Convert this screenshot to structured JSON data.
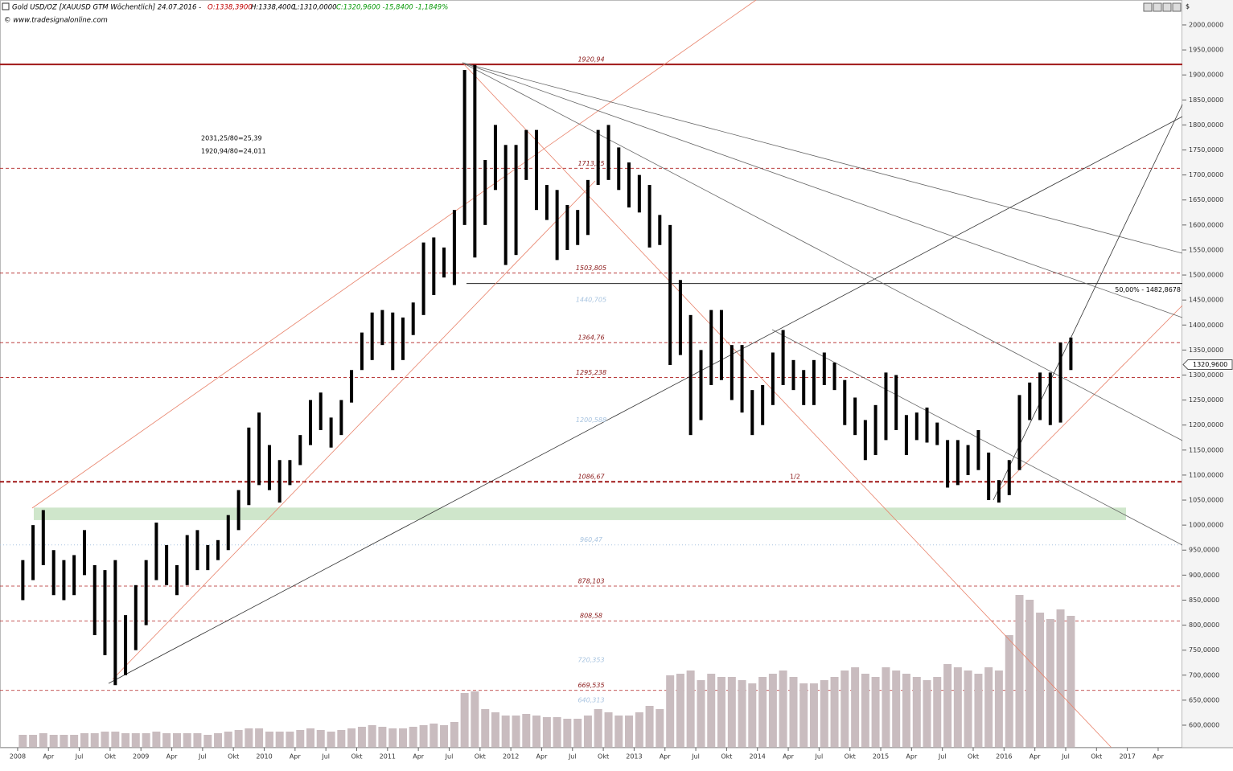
{
  "header": {
    "symbol": "Gold USD/OZ [XAUUSD GTM  Wöchentlich] 24.07.2016 -",
    "open": "O:1338,3900",
    "high": "H:1338,4000",
    "low": "L:1310,0000",
    "close": "C:1320,9600 -15,8400 -1,1849%",
    "source": "© www.tradesignalonline.com"
  },
  "chart_data": {
    "type": "range-bar",
    "x": [
      2008.042,
      2008.125,
      2008.208,
      2008.292,
      2008.375,
      2008.458,
      2008.542,
      2008.625,
      2008.708,
      2008.792,
      2008.875,
      2008.958,
      2009.042,
      2009.125,
      2009.208,
      2009.292,
      2009.375,
      2009.458,
      2009.542,
      2009.625,
      2009.708,
      2009.792,
      2009.875,
      2009.958,
      2010.042,
      2010.125,
      2010.208,
      2010.292,
      2010.375,
      2010.458,
      2010.542,
      2010.625,
      2010.708,
      2010.792,
      2010.875,
      2010.958,
      2011.042,
      2011.125,
      2011.208,
      2011.292,
      2011.375,
      2011.458,
      2011.542,
      2011.625,
      2011.708,
      2011.792,
      2011.875,
      2011.958,
      2012.042,
      2012.125,
      2012.208,
      2012.292,
      2012.375,
      2012.458,
      2012.542,
      2012.625,
      2012.708,
      2012.792,
      2012.875,
      2012.958,
      2013.042,
      2013.125,
      2013.208,
      2013.292,
      2013.375,
      2013.458,
      2013.542,
      2013.625,
      2013.708,
      2013.792,
      2013.875,
      2013.958,
      2014.042,
      2014.125,
      2014.208,
      2014.292,
      2014.375,
      2014.458,
      2014.542,
      2014.625,
      2014.708,
      2014.792,
      2014.875,
      2014.958,
      2015.042,
      2015.125,
      2015.208,
      2015.292,
      2015.375,
      2015.458,
      2015.542,
      2015.625,
      2015.708,
      2015.792,
      2015.875,
      2015.958,
      2016.042,
      2016.125,
      2016.208,
      2016.292,
      2016.375,
      2016.458,
      2016.542
    ],
    "high": [
      930,
      1000,
      1030,
      950,
      930,
      940,
      990,
      920,
      910,
      930,
      820,
      880,
      930,
      1005,
      960,
      920,
      980,
      990,
      960,
      970,
      1020,
      1070,
      1195,
      1225,
      1160,
      1130,
      1130,
      1180,
      1250,
      1265,
      1215,
      1250,
      1310,
      1385,
      1425,
      1430,
      1425,
      1415,
      1445,
      1565,
      1575,
      1555,
      1630,
      1910,
      1920,
      1730,
      1800,
      1760,
      1760,
      1790,
      1790,
      1680,
      1670,
      1640,
      1630,
      1690,
      1790,
      1800,
      1755,
      1725,
      1700,
      1680,
      1620,
      1600,
      1490,
      1420,
      1350,
      1430,
      1430,
      1360,
      1360,
      1270,
      1280,
      1345,
      1390,
      1330,
      1310,
      1330,
      1345,
      1325,
      1290,
      1255,
      1210,
      1240,
      1305,
      1300,
      1220,
      1225,
      1235,
      1205,
      1170,
      1170,
      1160,
      1190,
      1145,
      1090,
      1130,
      1260,
      1285,
      1305,
      1305,
      1365,
      1375
    ],
    "low": [
      850,
      890,
      920,
      860,
      850,
      860,
      900,
      780,
      740,
      680,
      700,
      750,
      800,
      890,
      880,
      860,
      880,
      910,
      910,
      930,
      950,
      990,
      1040,
      1080,
      1070,
      1045,
      1080,
      1120,
      1160,
      1190,
      1155,
      1180,
      1245,
      1310,
      1330,
      1360,
      1310,
      1330,
      1380,
      1420,
      1460,
      1495,
      1480,
      1600,
      1535,
      1600,
      1670,
      1520,
      1540,
      1690,
      1630,
      1610,
      1530,
      1550,
      1560,
      1580,
      1680,
      1690,
      1670,
      1635,
      1625,
      1555,
      1560,
      1320,
      1340,
      1180,
      1210,
      1280,
      1290,
      1250,
      1225,
      1180,
      1200,
      1240,
      1280,
      1270,
      1240,
      1240,
      1280,
      1270,
      1200,
      1180,
      1130,
      1140,
      1170,
      1190,
      1140,
      1170,
      1165,
      1160,
      1075,
      1080,
      1100,
      1110,
      1050,
      1045,
      1060,
      1110,
      1210,
      1210,
      1200,
      1205,
      1310
    ],
    "volume": [
      8,
      8,
      9,
      8,
      8,
      8,
      9,
      9,
      10,
      10,
      9,
      9,
      9,
      10,
      9,
      9,
      9,
      9,
      8,
      9,
      10,
      11,
      12,
      12,
      10,
      10,
      10,
      11,
      12,
      11,
      10,
      11,
      12,
      13,
      14,
      13,
      12,
      12,
      13,
      14,
      15,
      14,
      16,
      34,
      35,
      24,
      22,
      20,
      20,
      21,
      20,
      19,
      19,
      18,
      18,
      20,
      24,
      22,
      20,
      20,
      22,
      26,
      24,
      45,
      46,
      48,
      42,
      46,
      44,
      44,
      42,
      40,
      44,
      46,
      48,
      44,
      40,
      40,
      42,
      44,
      48,
      50,
      46,
      44,
      50,
      48,
      46,
      44,
      42,
      44,
      52,
      50,
      48,
      46,
      50,
      48,
      70,
      95,
      92,
      84,
      80,
      86,
      82
    ],
    "color": "#000000",
    "volume_color": "#c9bcbf",
    "xlim": [
      2007.857,
      2017.446
    ],
    "xticks": [
      {
        "value": 2008,
        "label": "2008"
      },
      {
        "value": 2008.25,
        "label": "Apr"
      },
      {
        "value": 2008.5,
        "label": "Jul"
      },
      {
        "value": 2008.75,
        "label": "Okt"
      },
      {
        "value": 2009,
        "label": "2009"
      },
      {
        "value": 2009.25,
        "label": "Apr"
      },
      {
        "value": 2009.5,
        "label": "Jul"
      },
      {
        "value": 2009.75,
        "label": "Okt"
      },
      {
        "value": 2010,
        "label": "2010"
      },
      {
        "value": 2010.25,
        "label": "Apr"
      },
      {
        "value": 2010.5,
        "label": "Jul"
      },
      {
        "value": 2010.75,
        "label": "Okt"
      },
      {
        "value": 2011,
        "label": "2011"
      },
      {
        "value": 2011.25,
        "label": "Apr"
      },
      {
        "value": 2011.5,
        "label": "Jul"
      },
      {
        "value": 2011.75,
        "label": "Okt"
      },
      {
        "value": 2012,
        "label": "2012"
      },
      {
        "value": 2012.25,
        "label": "Apr"
      },
      {
        "value": 2012.5,
        "label": "Jul"
      },
      {
        "value": 2012.75,
        "label": "Okt"
      },
      {
        "value": 2013,
        "label": "2013"
      },
      {
        "value": 2013.25,
        "label": "Apr"
      },
      {
        "value": 2013.5,
        "label": "Jul"
      },
      {
        "value": 2013.75,
        "label": "Okt"
      },
      {
        "value": 2014,
        "label": "2014"
      },
      {
        "value": 2014.25,
        "label": "Apr"
      },
      {
        "value": 2014.5,
        "label": "Jul"
      },
      {
        "value": 2014.75,
        "label": "Okt"
      },
      {
        "value": 2015,
        "label": "2015"
      },
      {
        "value": 2015.25,
        "label": "Apr"
      },
      {
        "value": 2015.5,
        "label": "Jul"
      },
      {
        "value": 2015.75,
        "label": "Okt"
      },
      {
        "value": 2016,
        "label": "2016"
      },
      {
        "value": 2016.25,
        "label": "Apr"
      },
      {
        "value": 2016.5,
        "label": "Jul"
      },
      {
        "value": 2016.75,
        "label": "Okt"
      },
      {
        "value": 2017,
        "label": "2017"
      },
      {
        "value": 2017.25,
        "label": "Apr"
      }
    ],
    "ylim": [
      555.0,
      2049.8
    ],
    "yticks": [
      {
        "value": 600,
        "label": "600,0000"
      },
      {
        "value": 650,
        "label": "650,0000"
      },
      {
        "value": 700,
        "label": "700,0000"
      },
      {
        "value": 750,
        "label": "750,0000"
      },
      {
        "value": 800,
        "label": "800,0000"
      },
      {
        "value": 850,
        "label": "850,0000"
      },
      {
        "value": 900,
        "label": "900,0000"
      },
      {
        "value": 950,
        "label": "950,0000"
      },
      {
        "value": 1000,
        "label": "1000,0000"
      },
      {
        "value": 1050,
        "label": "1050,0000"
      },
      {
        "value": 1100,
        "label": "1100,0000"
      },
      {
        "value": 1150,
        "label": "1150,0000"
      },
      {
        "value": 1200,
        "label": "1200,0000"
      },
      {
        "value": 1250,
        "label": "1250,0000"
      },
      {
        "value": 1300,
        "label": "1300,0000"
      },
      {
        "value": 1350,
        "label": "1350,0000"
      },
      {
        "value": 1400,
        "label": "1400,0000"
      },
      {
        "value": 1450,
        "label": "1450,0000"
      },
      {
        "value": 1500,
        "label": "1500,0000"
      },
      {
        "value": 1550,
        "label": "1550,0000"
      },
      {
        "value": 1600,
        "label": "1600,0000"
      },
      {
        "value": 1650,
        "label": "1650,0000"
      },
      {
        "value": 1700,
        "label": "1700,0000"
      },
      {
        "value": 1750,
        "label": "1750,0000"
      },
      {
        "value": 1800,
        "label": "1800,0000"
      },
      {
        "value": 1850,
        "label": "1850,0000"
      },
      {
        "value": 1900,
        "label": "1900,0000"
      },
      {
        "value": 1950,
        "label": "1950,0000"
      },
      {
        "value": 2000,
        "label": "2000,0000"
      }
    ],
    "y_unit": "$",
    "levels": [
      {
        "value": 1920.94,
        "label": "1920,94",
        "style": "solid"
      },
      {
        "value": 1713.35,
        "label": "1713,35",
        "style": "dashed"
      },
      {
        "value": 1503.805,
        "label": "1503,805",
        "style": "dashed"
      },
      {
        "value": 1440.705,
        "label": "1440,705",
        "style": "label"
      },
      {
        "value": 1364.76,
        "label": "1364,76",
        "style": "dashed"
      },
      {
        "value": 1295.238,
        "label": "1295,238",
        "style": "dashed"
      },
      {
        "value": 1200.588,
        "label": "1200,588",
        "style": "label"
      },
      {
        "value": 1086.67,
        "label": "1086,67",
        "style": "thick"
      },
      {
        "value": 960.47,
        "label": "960,47",
        "style": "dotted"
      },
      {
        "value": 878.103,
        "label": "878,103",
        "style": "dashed"
      },
      {
        "value": 808.58,
        "label": "808,58",
        "style": "dashed"
      },
      {
        "value": 720.353,
        "label": "720,353",
        "style": "label"
      },
      {
        "value": 669.535,
        "label": "669,535",
        "style": "dashed"
      },
      {
        "value": 640.313,
        "label": "640,313",
        "style": "label"
      }
    ],
    "fib": {
      "value": 1482.8678,
      "label": "50,00% - 1482,8678"
    },
    "zone": [
      1010,
      1035
    ],
    "last": {
      "value": 1320.96,
      "label": "1320,9600"
    },
    "annotations": [
      "2031,25/80=25,39",
      "1920,94/80=24,011",
      "1/2"
    ]
  }
}
